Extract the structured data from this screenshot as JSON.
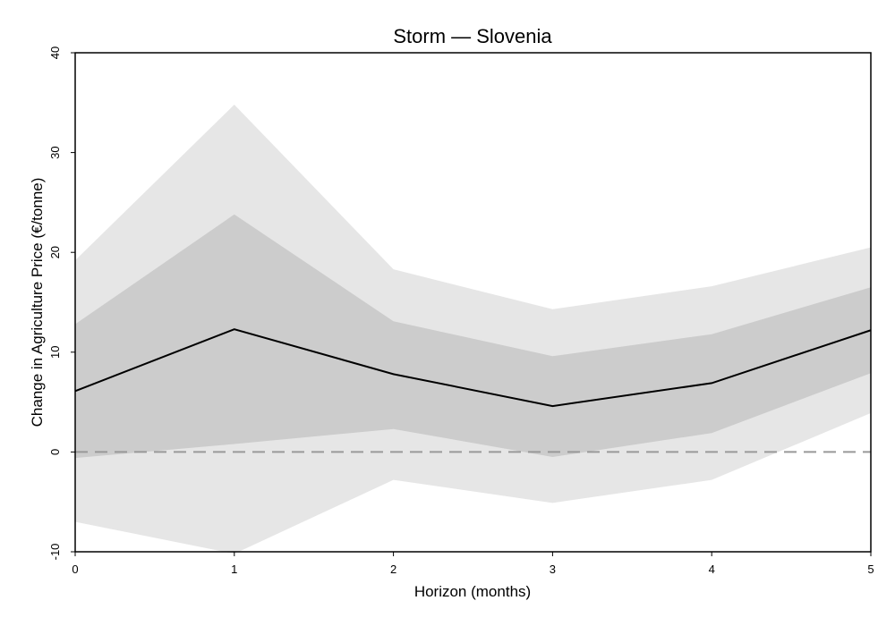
{
  "chart_data": {
    "type": "line",
    "title": "Storm — Slovenia",
    "xlabel": "Horizon (months)",
    "ylabel": "Change in Agriculture Price (€/tonne)",
    "x": [
      0,
      1,
      2,
      3,
      4,
      5
    ],
    "xlim": [
      0,
      5
    ],
    "ylim": [
      -10,
      40
    ],
    "xticks": [
      "0",
      "1",
      "2",
      "3",
      "4",
      "5"
    ],
    "yticks": [
      "-10",
      "0",
      "10",
      "20",
      "30",
      "40"
    ],
    "grid": false,
    "series": [
      {
        "values": [
          6.1,
          12.3,
          7.8,
          4.6,
          6.9,
          12.2
        ]
      }
    ],
    "bands": [
      {
        "role": "outer",
        "color": "#e6e6e6",
        "lower": [
          -7.0,
          -10.2,
          -2.8,
          -5.1,
          -2.8,
          3.9
        ],
        "upper": [
          19.2,
          34.8,
          18.3,
          14.3,
          16.6,
          20.5
        ]
      },
      {
        "role": "inner",
        "color": "#cccccc",
        "lower": [
          -0.6,
          0.8,
          2.3,
          -0.5,
          1.9,
          7.9
        ],
        "upper": [
          12.8,
          23.8,
          13.1,
          9.6,
          11.8,
          16.5
        ]
      }
    ],
    "reference_line": {
      "y": 0,
      "style": "dashed",
      "color": "#999999"
    },
    "line_color": "#000000"
  }
}
